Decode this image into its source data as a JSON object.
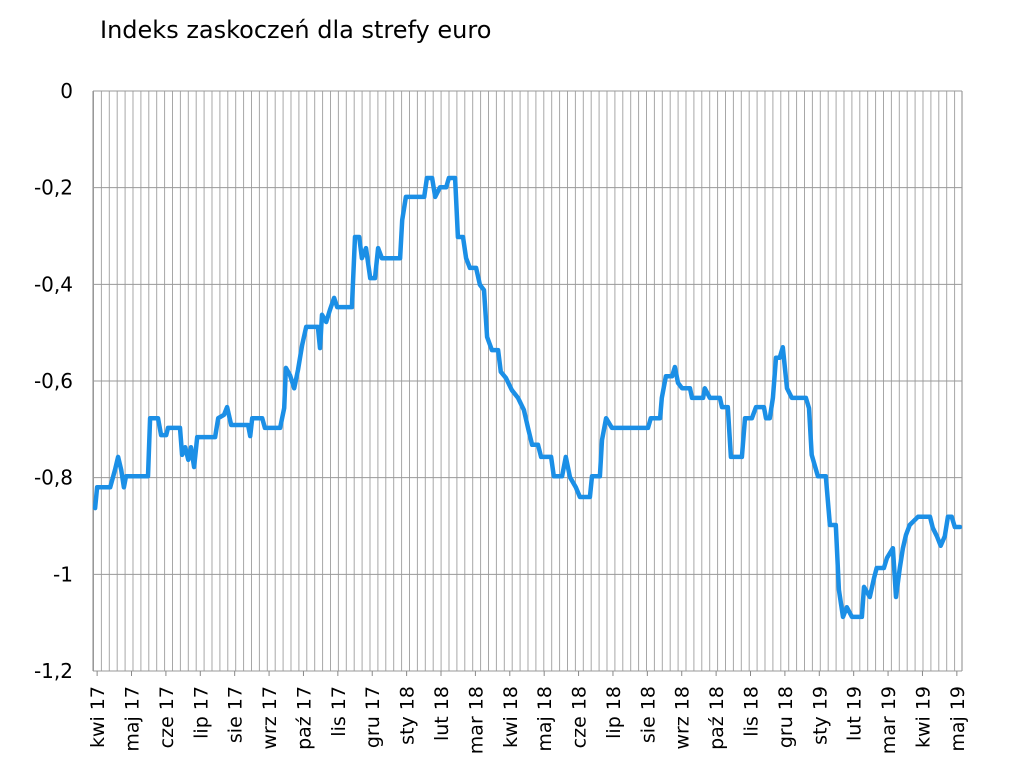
{
  "chart_data": {
    "type": "line",
    "title": "Indeks zaskoczeń dla strefy euro",
    "xlim": [
      -0.12,
      25.15
    ],
    "xticks": [
      {
        "value": 0,
        "label": "kwi 17"
      },
      {
        "value": 1,
        "label": "maj 17"
      },
      {
        "value": 2,
        "label": "cze 17"
      },
      {
        "value": 3,
        "label": "lip 17"
      },
      {
        "value": 4,
        "label": "sie 17"
      },
      {
        "value": 5,
        "label": "wrz 17"
      },
      {
        "value": 6,
        "label": "paź 17"
      },
      {
        "value": 7,
        "label": "lis 17"
      },
      {
        "value": 8,
        "label": "gru 17"
      },
      {
        "value": 9,
        "label": "sty 18"
      },
      {
        "value": 10,
        "label": "lut 18"
      },
      {
        "value": 11,
        "label": "mar 18"
      },
      {
        "value": 12,
        "label": "kwi 18"
      },
      {
        "value": 13,
        "label": "maj 18"
      },
      {
        "value": 14,
        "label": "cze 18"
      },
      {
        "value": 15,
        "label": "lip 18"
      },
      {
        "value": 16,
        "label": "sie 18"
      },
      {
        "value": 17,
        "label": "wrz 18"
      },
      {
        "value": 18,
        "label": "paź 18"
      },
      {
        "value": 19,
        "label": "lis 18"
      },
      {
        "value": 20,
        "label": "gru 18"
      },
      {
        "value": 21,
        "label": "sty 19"
      },
      {
        "value": 22,
        "label": "lut 19"
      },
      {
        "value": 23,
        "label": "mar 19"
      },
      {
        "value": 24,
        "label": "kwi 19"
      },
      {
        "value": 25,
        "label": "maj 19"
      }
    ],
    "ylim": [
      -1.2,
      0
    ],
    "yticks": [
      {
        "value": 0,
        "label": "0"
      },
      {
        "value": -0.2,
        "label": "-0,2"
      },
      {
        "value": -0.4,
        "label": "-0,4"
      },
      {
        "value": -0.6,
        "label": "-0,6"
      },
      {
        "value": -0.8,
        "label": "-0,8"
      },
      {
        "value": -1,
        "label": "-1"
      },
      {
        "value": -1.2,
        "label": "-1,2"
      }
    ],
    "grid": true,
    "series": [
      {
        "color": "#1b8fe6",
        "x": [
          -0.06,
          0,
          0.38,
          0.52,
          0.61,
          0.7,
          0.78,
          0.84,
          1.48,
          1.54,
          1.77,
          1.86,
          2.01,
          2.06,
          2.41,
          2.47,
          2.56,
          2.65,
          2.73,
          2.82,
          2.91,
          3.43,
          3.52,
          3.69,
          3.78,
          3.9,
          4.39,
          4.45,
          4.51,
          4.8,
          4.88,
          5.32,
          5.44,
          5.49,
          5.61,
          5.73,
          5.84,
          5.96,
          6.08,
          6.42,
          6.48,
          6.54,
          6.66,
          6.77,
          6.89,
          6.98,
          7.41,
          7.5,
          7.62,
          7.7,
          7.82,
          7.94,
          8.08,
          8.17,
          8.28,
          8.81,
          8.87,
          8.98,
          9.51,
          9.59,
          9.74,
          9.83,
          9.97,
          10.15,
          10.23,
          10.41,
          10.49,
          10.64,
          10.73,
          10.84,
          11.02,
          11.13,
          11.25,
          11.34,
          11.48,
          11.66,
          11.74,
          11.89,
          12.06,
          12.24,
          12.41,
          12.53,
          12.65,
          12.82,
          12.91,
          13.2,
          13.28,
          13.52,
          13.63,
          13.75,
          13.92,
          14.04,
          14.33,
          14.39,
          14.62,
          14.68,
          14.8,
          14.97,
          16.02,
          16.1,
          16.37,
          16.42,
          16.54,
          16.72,
          16.8,
          16.89,
          17.01,
          17.24,
          17.3,
          17.62,
          17.67,
          17.82,
          18.11,
          18.17,
          18.34,
          18.43,
          18.75,
          18.84,
          19.04,
          19.16,
          19.39,
          19.45,
          19.56,
          19.65,
          19.74,
          19.85,
          19.94,
          20.06,
          20.2,
          20.61,
          20.7,
          20.78,
          20.96,
          21.19,
          21.31,
          21.48,
          21.57,
          21.69,
          21.8,
          21.95,
          22.24,
          22.3,
          22.47,
          22.59,
          22.67,
          22.88,
          22.97,
          23.14,
          23.23,
          23.34,
          23.43,
          23.52,
          23.63,
          23.87,
          24.22,
          24.3,
          24.42,
          24.53,
          24.65,
          24.74,
          24.85,
          24.94,
          25.09
        ],
        "values": [
          -0.863,
          -0.82,
          -0.82,
          -0.784,
          -0.757,
          -0.784,
          -0.82,
          -0.797,
          -0.797,
          -0.677,
          -0.677,
          -0.712,
          -0.712,
          -0.697,
          -0.697,
          -0.753,
          -0.737,
          -0.763,
          -0.737,
          -0.778,
          -0.716,
          -0.716,
          -0.677,
          -0.67,
          -0.654,
          -0.691,
          -0.691,
          -0.714,
          -0.677,
          -0.677,
          -0.697,
          -0.697,
          -0.656,
          -0.573,
          -0.588,
          -0.615,
          -0.577,
          -0.526,
          -0.488,
          -0.488,
          -0.532,
          -0.463,
          -0.478,
          -0.453,
          -0.428,
          -0.447,
          -0.447,
          -0.302,
          -0.302,
          -0.346,
          -0.325,
          -0.387,
          -0.387,
          -0.325,
          -0.346,
          -0.346,
          -0.267,
          -0.219,
          -0.219,
          -0.18,
          -0.18,
          -0.219,
          -0.199,
          -0.199,
          -0.18,
          -0.18,
          -0.302,
          -0.302,
          -0.346,
          -0.366,
          -0.366,
          -0.401,
          -0.412,
          -0.509,
          -0.536,
          -0.536,
          -0.581,
          -0.594,
          -0.619,
          -0.635,
          -0.66,
          -0.697,
          -0.732,
          -0.732,
          -0.757,
          -0.757,
          -0.797,
          -0.797,
          -0.757,
          -0.799,
          -0.82,
          -0.84,
          -0.84,
          -0.797,
          -0.797,
          -0.722,
          -0.677,
          -0.697,
          -0.697,
          -0.677,
          -0.677,
          -0.635,
          -0.59,
          -0.59,
          -0.571,
          -0.604,
          -0.615,
          -0.615,
          -0.635,
          -0.635,
          -0.615,
          -0.635,
          -0.635,
          -0.654,
          -0.654,
          -0.757,
          -0.757,
          -0.677,
          -0.677,
          -0.654,
          -0.654,
          -0.677,
          -0.677,
          -0.635,
          -0.552,
          -0.552,
          -0.53,
          -0.615,
          -0.635,
          -0.635,
          -0.656,
          -0.753,
          -0.797,
          -0.797,
          -0.898,
          -0.898,
          -1.032,
          -1.088,
          -1.068,
          -1.088,
          -1.088,
          -1.026,
          -1.047,
          -1.008,
          -0.987,
          -0.987,
          -0.966,
          -0.946,
          -1.047,
          -0.987,
          -0.946,
          -0.919,
          -0.898,
          -0.881,
          -0.881,
          -0.904,
          -0.921,
          -0.941,
          -0.921,
          -0.881,
          -0.881,
          -0.902,
          -0.902
        ]
      }
    ]
  }
}
